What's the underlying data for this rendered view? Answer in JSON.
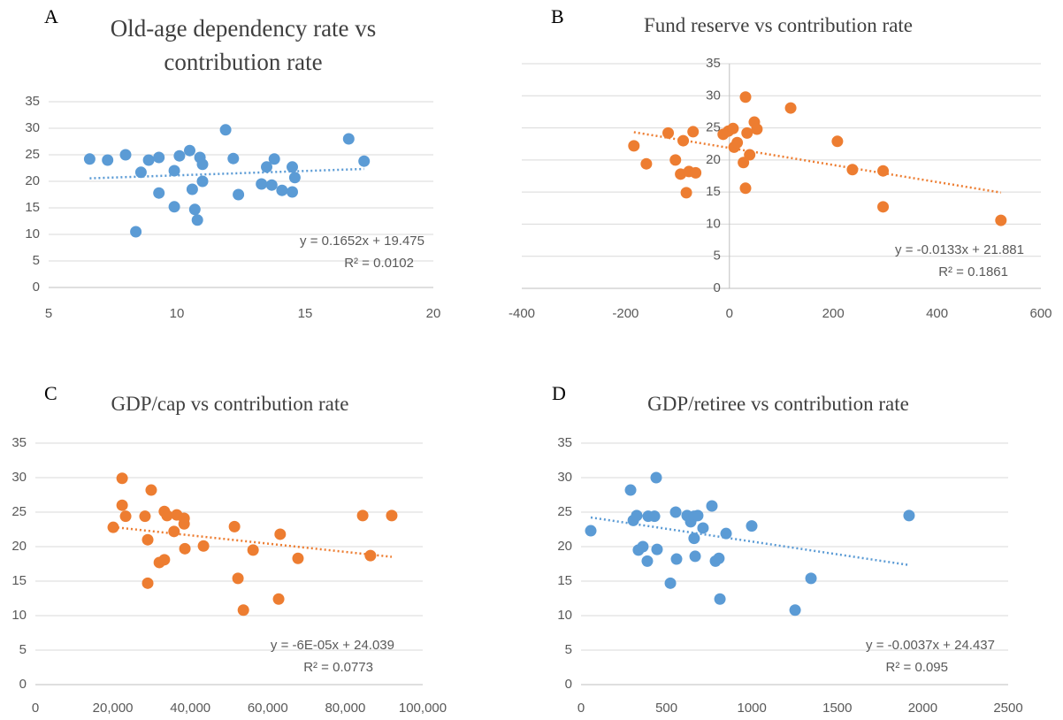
{
  "chart_data": [
    {
      "type": "scatter",
      "panel": "A",
      "title": "Old-age dependency rate vs contribution rate",
      "color": "#5b9bd5",
      "x": [
        6.6,
        7.3,
        8.0,
        8.4,
        8.6,
        8.9,
        9.3,
        9.3,
        9.9,
        9.9,
        10.1,
        10.5,
        10.6,
        10.7,
        10.8,
        10.9,
        11.0,
        11.0,
        11.9,
        12.2,
        12.4,
        13.3,
        13.5,
        13.7,
        13.8,
        14.1,
        14.5,
        14.5,
        14.6,
        16.7,
        17.3
      ],
      "y": [
        24.2,
        24.0,
        25.0,
        10.5,
        21.7,
        24.0,
        24.5,
        17.8,
        15.2,
        22.0,
        24.8,
        25.8,
        18.5,
        14.7,
        12.7,
        24.5,
        23.2,
        20.0,
        29.7,
        24.3,
        17.5,
        19.5,
        22.7,
        19.3,
        24.2,
        18.3,
        22.7,
        18.0,
        20.7,
        28.0,
        23.8
      ],
      "xlim": [
        5,
        20
      ],
      "xticks": [
        5,
        10,
        15,
        20
      ],
      "ylim": [
        0,
        35
      ],
      "yticks": [
        0,
        5,
        10,
        15,
        20,
        25,
        30,
        35
      ],
      "grid": true,
      "trendline": {
        "slope": 0.1652,
        "intercept": 19.475,
        "equation": "y = 0.1652x + 19.475",
        "r_squared_label": "R² = 0.0102"
      }
    },
    {
      "type": "scatter",
      "panel": "B",
      "title": "Fund reserve vs contribution rate",
      "color": "#ed7d31",
      "x": [
        -184,
        -160,
        -118,
        -104,
        -94,
        -89,
        -83,
        -78,
        -70,
        -65,
        -12,
        -2,
        7,
        9,
        15,
        27,
        31,
        31,
        34,
        39,
        48,
        53,
        118,
        208,
        237,
        296,
        296,
        523
      ],
      "y": [
        22.2,
        19.4,
        24.2,
        20.0,
        17.8,
        23.0,
        14.9,
        18.2,
        24.4,
        18.0,
        24.0,
        24.5,
        24.9,
        22.0,
        22.7,
        19.6,
        15.6,
        29.8,
        24.2,
        20.8,
        25.9,
        24.8,
        28.1,
        22.9,
        18.5,
        18.3,
        12.7,
        10.6
      ],
      "xlim": [
        -400,
        600
      ],
      "xticks": [
        -400,
        -200,
        0,
        200,
        400,
        600
      ],
      "ylim": [
        0,
        35
      ],
      "yticks": [
        0,
        5,
        10,
        15,
        20,
        25,
        30,
        35
      ],
      "grid": true,
      "trendline": {
        "slope": -0.0133,
        "intercept": 21.881,
        "equation": "y = -0.0133x + 21.881",
        "r_squared_label": "R² = 0.1861"
      }
    },
    {
      "type": "scatter",
      "panel": "C",
      "title": "GDP/cap vs contribution rate",
      "color": "#ed7d31",
      "x": [
        20100,
        22400,
        22400,
        23300,
        28300,
        29000,
        29000,
        29900,
        32000,
        33300,
        33300,
        34000,
        35800,
        36500,
        38400,
        38400,
        38600,
        43400,
        51400,
        52300,
        53700,
        56200,
        62800,
        63200,
        67800,
        84500,
        86500,
        92000
      ],
      "y": [
        22.8,
        29.9,
        26.0,
        24.4,
        24.4,
        21.0,
        14.7,
        28.2,
        17.7,
        18.1,
        25.1,
        24.5,
        22.2,
        24.6,
        24.1,
        23.3,
        19.7,
        20.1,
        22.9,
        15.4,
        10.8,
        19.5,
        12.4,
        21.8,
        18.3,
        24.5,
        18.7,
        24.5
      ],
      "xlim": [
        0,
        100000
      ],
      "xticks": [
        0,
        {
          "value": 20000,
          "label": "20,000"
        },
        {
          "value": 40000,
          "label": "40,000"
        },
        {
          "value": 60000,
          "label": "60,000"
        },
        {
          "value": 80000,
          "label": "80,000"
        },
        {
          "value": 100000,
          "label": "100,000"
        }
      ],
      "ylim": [
        0,
        35
      ],
      "yticks": [
        0,
        5,
        10,
        15,
        20,
        25,
        30,
        35
      ],
      "grid": true,
      "trendline": {
        "slope": -6e-05,
        "intercept": 24.039,
        "equation": "y = -6E-05x + 24.039",
        "r_squared_label": "R² = 0.0773"
      }
    },
    {
      "type": "scatter",
      "panel": "D",
      "title": "GDP/retiree vs contribution rate",
      "color": "#5b9bd5",
      "x": [
        57,
        290,
        306,
        326,
        336,
        362,
        388,
        393,
        430,
        440,
        445,
        523,
        554,
        559,
        621,
        642,
        662,
        662,
        668,
        683,
        714,
        766,
        787,
        807,
        813,
        849,
        999,
        1253,
        1346,
        1920
      ],
      "y": [
        22.3,
        28.2,
        23.8,
        24.5,
        19.5,
        20.0,
        17.9,
        24.4,
        24.4,
        30.0,
        19.6,
        14.7,
        25.0,
        18.2,
        24.5,
        23.6,
        24.4,
        21.2,
        18.6,
        24.5,
        22.7,
        25.9,
        17.9,
        18.3,
        12.4,
        21.9,
        23.0,
        10.8,
        15.4,
        24.5
      ],
      "xlim": [
        0,
        2500
      ],
      "xticks": [
        0,
        500,
        1000,
        1500,
        2000,
        2500
      ],
      "ylim": [
        0,
        35
      ],
      "yticks": [
        0,
        5,
        10,
        15,
        20,
        25,
        30,
        35
      ],
      "grid": true,
      "trendline": {
        "slope": -0.0037,
        "intercept": 24.437,
        "equation": "y = -0.0037x + 24.437",
        "r_squared_label": "R² = 0.095"
      }
    }
  ]
}
